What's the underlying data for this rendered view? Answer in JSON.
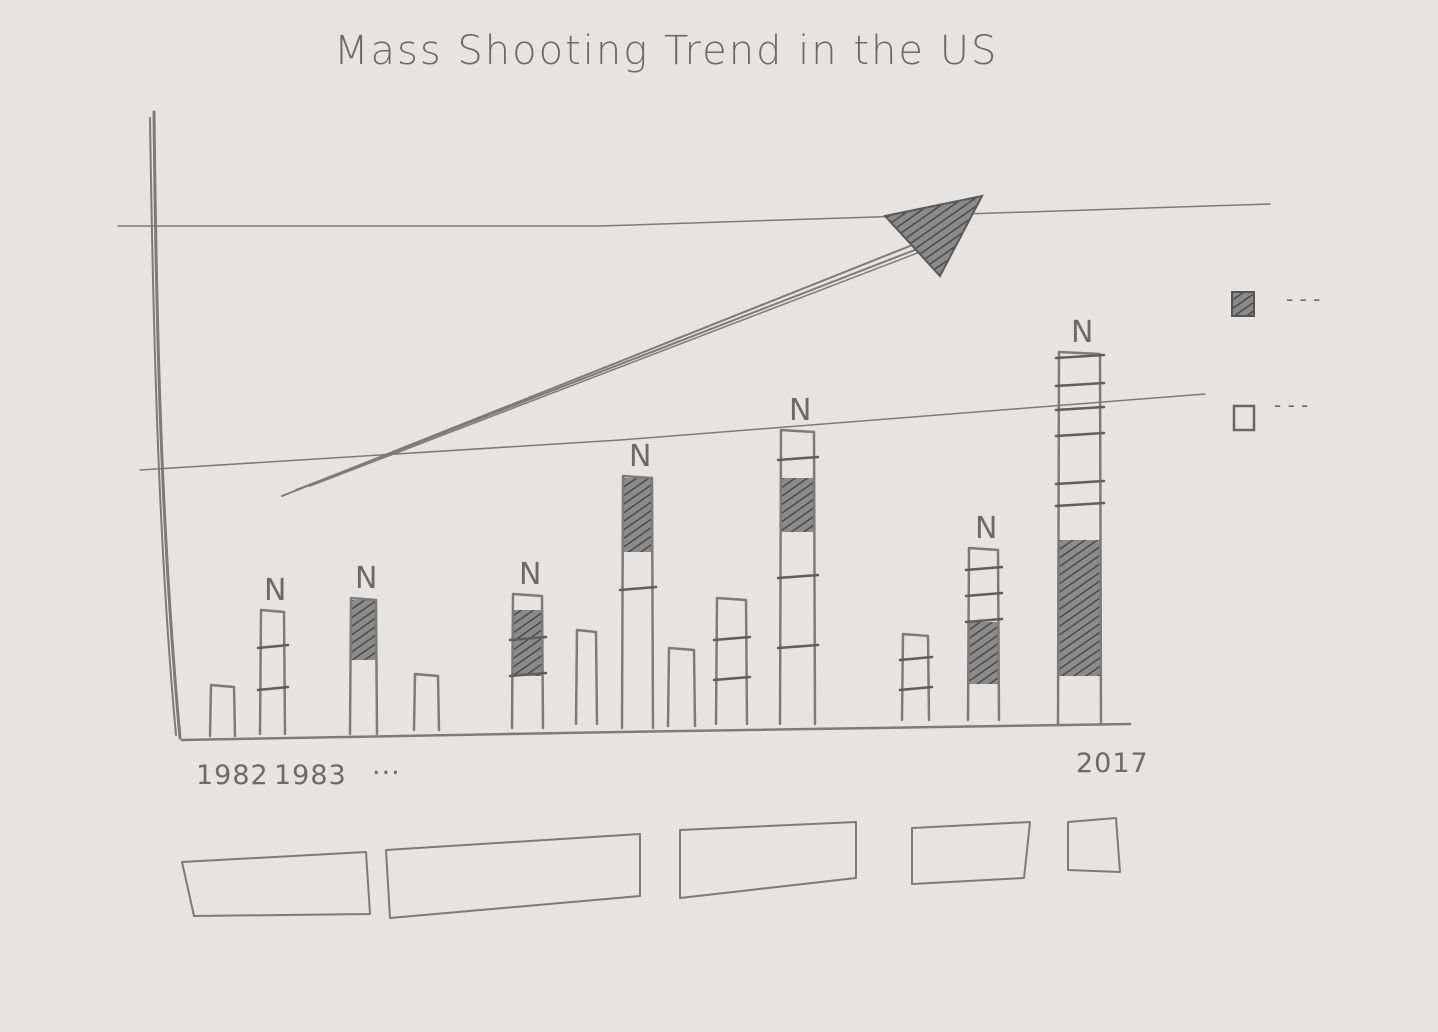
{
  "chart_data": {
    "type": "bar",
    "title": "Mass Shooting Trend in the US",
    "x_tick_labels": [
      "1982",
      "1983",
      "...",
      "2017"
    ],
    "bar_count": 13,
    "bar_label": "N",
    "stacked_segments": true,
    "trend_arrow": "up",
    "legend_position": "right",
    "legend": [
      {
        "swatch": "filled",
        "label": "- - -"
      },
      {
        "swatch": "empty",
        "label": "- - -"
      }
    ],
    "reference_lines": 2,
    "grid": false
  },
  "controls": [
    {
      "name": "control-box-1"
    },
    {
      "name": "control-box-2"
    },
    {
      "name": "control-box-3"
    },
    {
      "name": "control-box-4"
    },
    {
      "name": "control-box-5"
    }
  ],
  "colors": {
    "paper": "#e6e4e2",
    "pencil": "#7b7b7b",
    "shading": "#555555"
  }
}
